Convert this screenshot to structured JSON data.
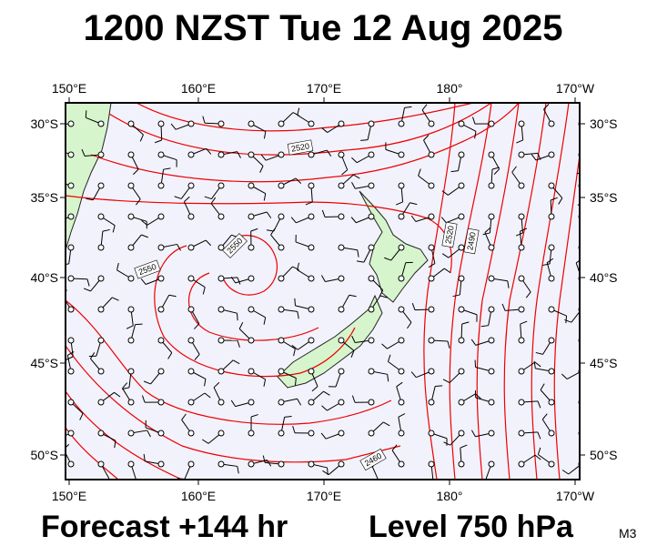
{
  "header": {
    "title": "1200 NZST Tue 12 Aug 2025"
  },
  "map": {
    "lon_labels": [
      "150°E",
      "160°E",
      "170°E",
      "180°",
      "170°W"
    ],
    "lat_labels": [
      "30°S",
      "35°S",
      "40°S",
      "45°S",
      "50°S"
    ],
    "contour_labels": [
      "2520",
      "2550",
      "2550",
      "2520",
      "2490",
      "2460"
    ]
  },
  "footer": {
    "forecast": "Forecast +144 hr",
    "level": "Level 750 hPa",
    "code": "M3"
  }
}
